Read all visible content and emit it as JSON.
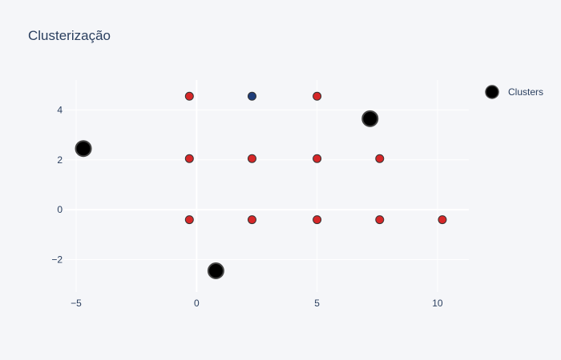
{
  "chart_data": {
    "type": "scatter",
    "title": "Clusterização",
    "xlabel": "",
    "ylabel": "",
    "xlim": [
      -5.5,
      11.3
    ],
    "ylim": [
      -3.3,
      5.2
    ],
    "xticks": [
      -5,
      0,
      5,
      10
    ],
    "yticks": [
      -2,
      0,
      2,
      4
    ],
    "x_tick_labels": [
      "−5",
      "0",
      "5",
      "10"
    ],
    "y_tick_labels": [
      "−2",
      "0",
      "2",
      "4"
    ],
    "grid": true,
    "legend_position": "top-right",
    "series": [
      {
        "name": "",
        "color": "#d62728",
        "marker_size": "small",
        "show_in_legend": false,
        "points": [
          {
            "x": -0.3,
            "y": 4.55
          },
          {
            "x": 5.0,
            "y": 4.55
          },
          {
            "x": -0.3,
            "y": 2.05
          },
          {
            "x": 2.3,
            "y": 2.05
          },
          {
            "x": 5.0,
            "y": 2.05
          },
          {
            "x": 7.6,
            "y": 2.05
          },
          {
            "x": -0.3,
            "y": -0.4
          },
          {
            "x": 2.3,
            "y": -0.4
          },
          {
            "x": 5.0,
            "y": -0.4
          },
          {
            "x": 7.6,
            "y": -0.4
          },
          {
            "x": 10.2,
            "y": -0.4
          }
        ]
      },
      {
        "name": "",
        "color": "#1f3d7a",
        "marker_size": "small",
        "show_in_legend": false,
        "points": [
          {
            "x": 2.3,
            "y": 4.55
          }
        ]
      },
      {
        "name": "Clusters",
        "color": "#000000",
        "marker_size": "large",
        "show_in_legend": true,
        "points": [
          {
            "x": -4.7,
            "y": 2.45
          },
          {
            "x": 7.2,
            "y": 3.65
          },
          {
            "x": 0.8,
            "y": -2.45
          }
        ]
      }
    ]
  }
}
